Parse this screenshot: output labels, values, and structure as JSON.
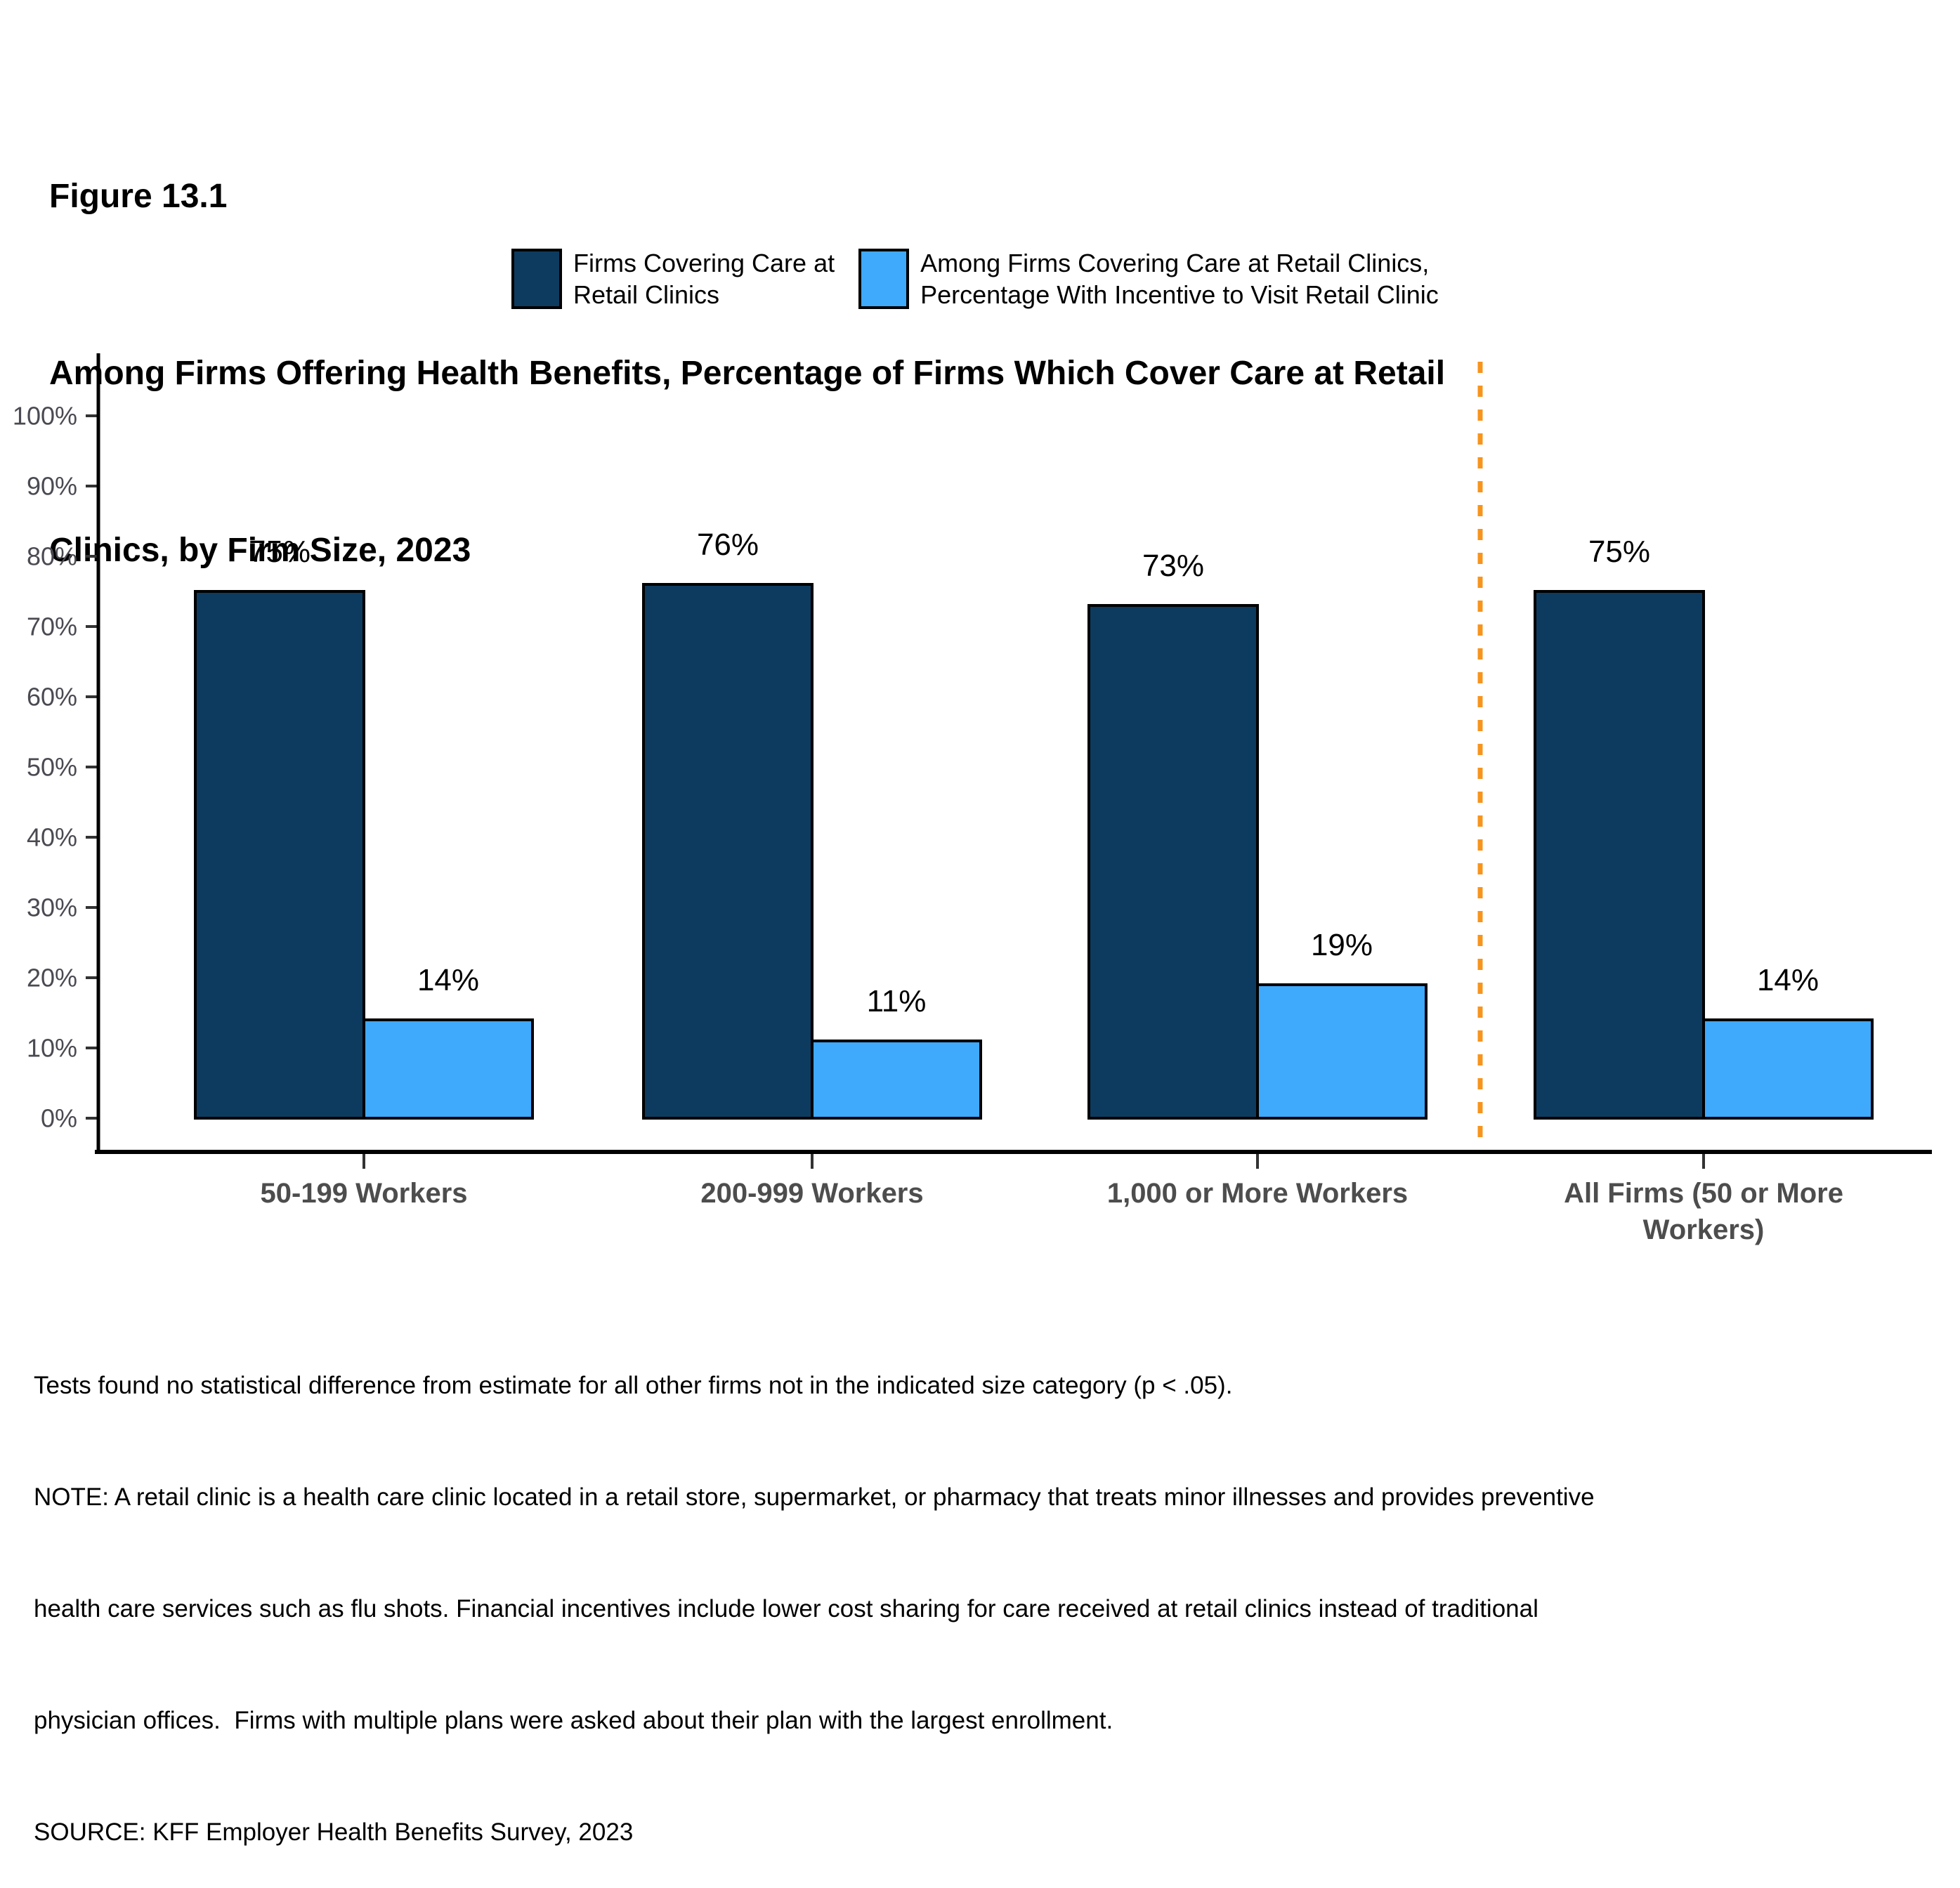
{
  "figure_label": "Figure 13.1",
  "title_line1": "Among Firms Offering Health Benefits, Percentage of Firms Which Cover Care at Retail",
  "title_line2": "Clinics, by Firm Size, 2023",
  "legend": {
    "items": [
      {
        "label_line1": "Firms Covering Care at",
        "label_line2": "Retail Clinics",
        "color": "#0D3B5F"
      },
      {
        "label_line1": "Among Firms Covering Care at Retail Clinics,",
        "label_line2": "Percentage With Incentive to Visit Retail Clinic",
        "color": "#3FA9FC"
      }
    ]
  },
  "chart_data": {
    "type": "bar",
    "title": "Among Firms Offering Health Benefits, Percentage of Firms Which Cover Care at Retail Clinics, by Firm Size, 2023",
    "categories": [
      "50-199 Workers",
      "200-999 Workers",
      "1,000 or More Workers",
      "All Firms (50 or More Workers)"
    ],
    "category_label_lines": [
      [
        "50-199 Workers"
      ],
      [
        "200-999 Workers"
      ],
      [
        "1,000 or More Workers"
      ],
      [
        "All Firms (50 or More",
        "Workers)"
      ]
    ],
    "series": [
      {
        "name": "Firms Covering Care at Retail Clinics",
        "color": "#0D3B5F",
        "values": [
          75,
          76,
          73,
          75
        ],
        "labels": [
          "75%",
          "76%",
          "73%",
          "75%"
        ]
      },
      {
        "name": "Among Firms Covering Care at Retail Clinics, Percentage With Incentive to Visit Retail Clinic",
        "color": "#3FA9FC",
        "values": [
          14,
          11,
          19,
          14
        ],
        "labels": [
          "14%",
          "11%",
          "19%",
          "14%"
        ]
      }
    ],
    "ylim": [
      0,
      100
    ],
    "yticks": [
      "0%",
      "10%",
      "20%",
      "30%",
      "40%",
      "50%",
      "60%",
      "70%",
      "80%",
      "90%",
      "100%"
    ],
    "grid": false,
    "legend_position": "top",
    "separator": {
      "after_category_index": 2,
      "color": "#F7941D",
      "style": "dashed"
    },
    "bar_border_color": "#000000",
    "axis_color": "#000000",
    "tick_color": "#333333",
    "ytick_label_color": "#4a4a52",
    "category_label_color": "#4d4d4d"
  },
  "footnotes": {
    "lines": [
      "Tests found no statistical difference from estimate for all other firms not in the indicated size category (p < .05).",
      "NOTE: A retail clinic is a health care clinic located in a retail store, supermarket, or pharmacy that treats minor illnesses and provides preventive",
      "health care services such as flu shots. Financial incentives include lower cost sharing for care received at retail clinics instead of traditional",
      "physician offices.  Firms with multiple plans were asked about their plan with the largest enrollment.",
      "SOURCE: KFF Employer Health Benefits Survey, 2023"
    ]
  }
}
